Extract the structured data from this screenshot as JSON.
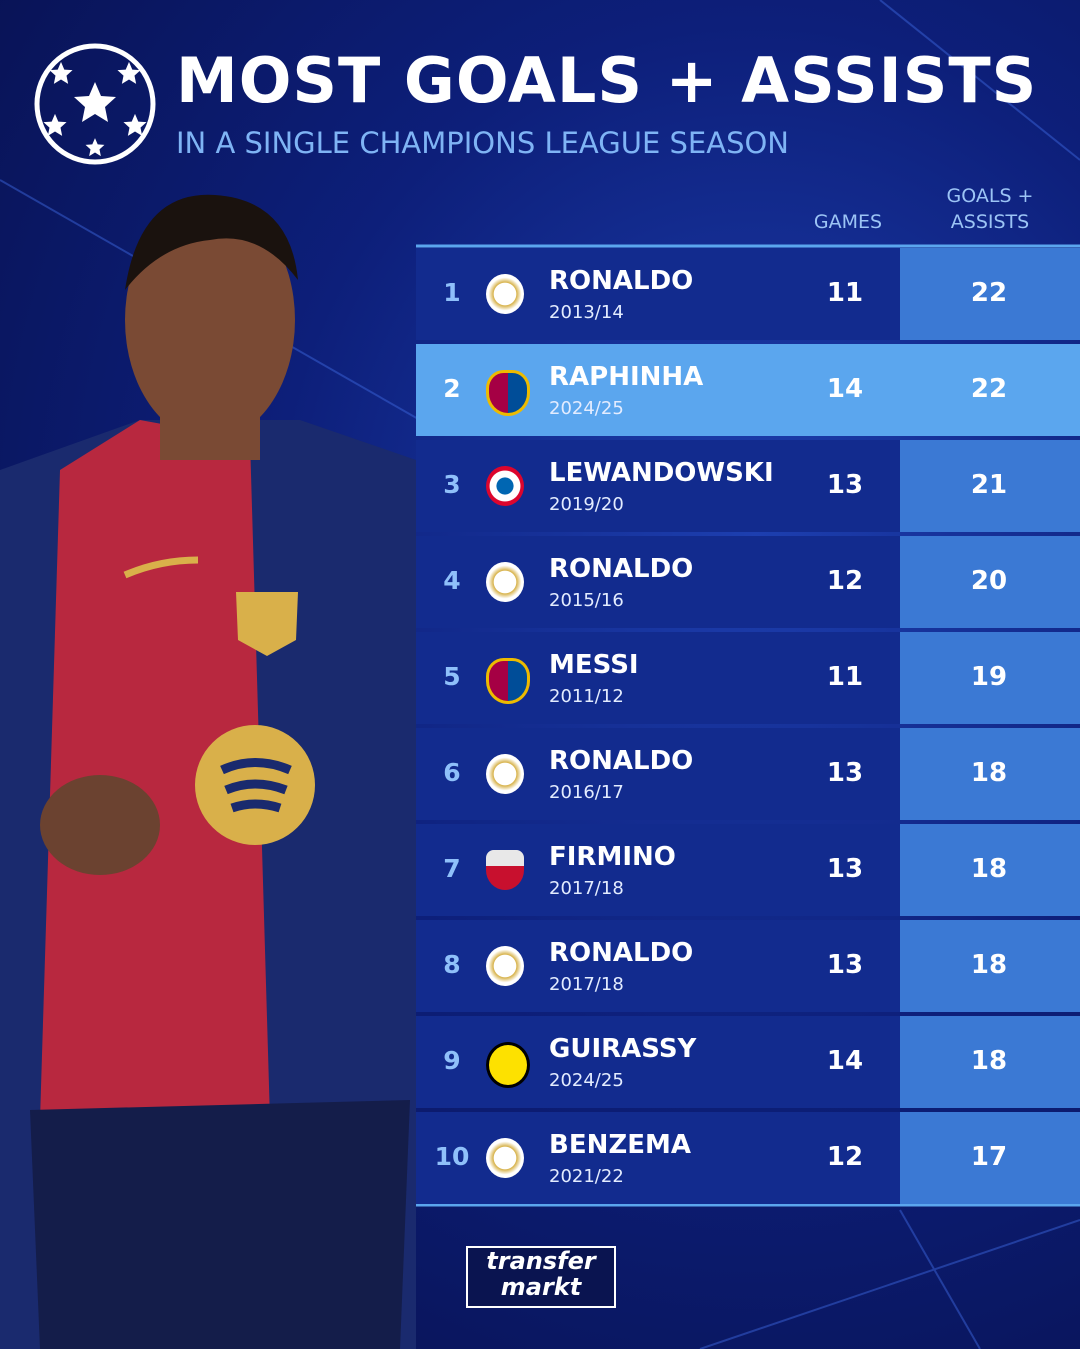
{
  "header": {
    "title": "MOST GOALS + ASSISTS",
    "subtitle": "IN A SINGLE CHAMPIONS LEAGUE SEASON"
  },
  "table": {
    "columns": [
      "GAMES",
      "GOALS + ASSISTS"
    ],
    "rows": [
      {
        "rank": 1,
        "name": "RONALDO",
        "season": "2013/14",
        "games": 11,
        "goals_assists": 22
      },
      {
        "rank": 2,
        "name": "RAPHINHA",
        "season": "2024/25",
        "games": 14,
        "goals_assists": 22
      },
      {
        "rank": 3,
        "name": "LEWANDOWSKI",
        "season": "2019/20",
        "games": 13,
        "goals_assists": 21
      },
      {
        "rank": 4,
        "name": "RONALDO",
        "season": "2015/16",
        "games": 12,
        "goals_assists": 20
      },
      {
        "rank": 5,
        "name": "MESSI",
        "season": "2011/12",
        "games": 11,
        "goals_assists": 19
      },
      {
        "rank": 6,
        "name": "RONALDO",
        "season": "2016/17",
        "games": 13,
        "goals_assists": 18
      },
      {
        "rank": 7,
        "name": "FIRMINO",
        "season": "2017/18",
        "games": 13,
        "goals_assists": 18
      },
      {
        "rank": 8,
        "name": "RONALDO",
        "season": "2017/18",
        "games": 13,
        "goals_assists": 18
      },
      {
        "rank": 9,
        "name": "GUIRASSY",
        "season": "2024/25",
        "games": 14,
        "goals_assists": 18
      },
      {
        "rank": 10,
        "name": "BENZEMA",
        "season": "2021/22",
        "games": 12,
        "goals_assists": 17
      }
    ]
  },
  "logo": {
    "line1": "transfer",
    "line2": "markt"
  }
}
